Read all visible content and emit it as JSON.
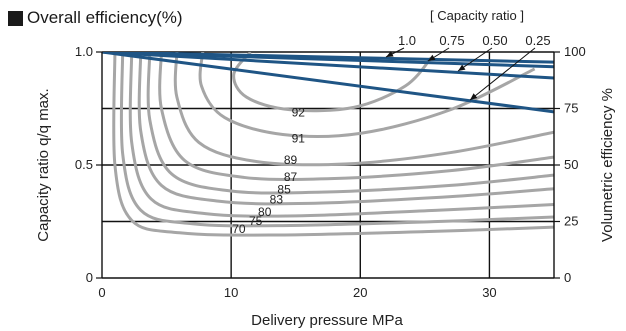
{
  "chart_data": {
    "type": "line",
    "title": "Overall efficiency(%)",
    "xlabel": "Delivery pressure MPa",
    "ylabel_left": "Capacity ratio  q/q max.",
    "ylabel_right": "Volumetric efficiency  %",
    "legend_title": "[ Capacity ratio ]",
    "xlim": [
      0,
      35
    ],
    "ylim": [
      0,
      1.0
    ],
    "grid": true,
    "x_ticks": [
      0,
      10,
      20,
      30
    ],
    "x_tick_labels": [
      "0",
      "10",
      "20",
      "30"
    ],
    "y_ticks_left": [
      0,
      0.5,
      1.0
    ],
    "y_tick_labels_left": [
      "0",
      "0.5",
      "1.0"
    ],
    "y_ticks_right": [
      0,
      0.25,
      0.5,
      0.75,
      1.0
    ],
    "y_tick_labels_right": [
      "0",
      "25",
      "50",
      "75",
      "100"
    ],
    "capacity_ratio_labels": [
      "1.0",
      "0.75",
      "0.50",
      "0.25"
    ],
    "volumetric_efficiency_series": [
      {
        "name": "1.0",
        "x": [
          0,
          35
        ],
        "y": [
          1.0,
          0.955
        ]
      },
      {
        "name": "0.75",
        "x": [
          0,
          35
        ],
        "y": [
          1.0,
          0.935
        ]
      },
      {
        "name": "0.50",
        "x": [
          0,
          35
        ],
        "y": [
          1.0,
          0.885
        ]
      },
      {
        "name": "0.25",
        "x": [
          0,
          35
        ],
        "y": [
          1.0,
          0.735
        ]
      }
    ],
    "efficiency_contours": [
      {
        "label": "92",
        "label_at": [
          15.2,
          0.715
        ],
        "points": [
          [
            11.5,
            1.0
          ],
          [
            10.2,
            0.9
          ],
          [
            11.2,
            0.8
          ],
          [
            14.5,
            0.745
          ],
          [
            19.5,
            0.755
          ],
          [
            23.5,
            0.85
          ],
          [
            25.5,
            0.975
          ]
        ]
      },
      {
        "label": "91",
        "label_at": [
          15.2,
          0.6
        ],
        "points": [
          [
            7.8,
            1.0
          ],
          [
            7.7,
            0.85
          ],
          [
            9.5,
            0.71
          ],
          [
            14,
            0.635
          ],
          [
            20,
            0.64
          ],
          [
            27,
            0.745
          ],
          [
            33.5,
            0.925
          ]
        ]
      },
      {
        "label": "89",
        "label_at": [
          14.6,
          0.505
        ],
        "points": [
          [
            5.8,
            1.0
          ],
          [
            5.8,
            0.8
          ],
          [
            7.5,
            0.6
          ],
          [
            12,
            0.515
          ],
          [
            19,
            0.505
          ],
          [
            27,
            0.555
          ],
          [
            35,
            0.645
          ]
        ]
      },
      {
        "label": "87",
        "label_at": [
          14.6,
          0.43
        ],
        "points": [
          [
            4.6,
            1.0
          ],
          [
            4.6,
            0.75
          ],
          [
            6.4,
            0.52
          ],
          [
            11,
            0.445
          ],
          [
            18,
            0.44
          ],
          [
            27,
            0.475
          ],
          [
            35,
            0.535
          ]
        ]
      },
      {
        "label": "85",
        "label_at": [
          14.1,
          0.375
        ],
        "points": [
          [
            3.7,
            1.0
          ],
          [
            3.7,
            0.7
          ],
          [
            5.4,
            0.46
          ],
          [
            10,
            0.385
          ],
          [
            17,
            0.38
          ],
          [
            27,
            0.41
          ],
          [
            35,
            0.455
          ]
        ]
      },
      {
        "label": "83",
        "label_at": [
          13.5,
          0.33
        ],
        "points": [
          [
            3.0,
            1.0
          ],
          [
            3.0,
            0.65
          ],
          [
            4.6,
            0.41
          ],
          [
            9,
            0.34
          ],
          [
            16,
            0.33
          ],
          [
            27,
            0.36
          ],
          [
            35,
            0.395
          ]
        ]
      },
      {
        "label": "80",
        "label_at": [
          12.6,
          0.275
        ],
        "points": [
          [
            2.3,
            1.0
          ],
          [
            2.3,
            0.6
          ],
          [
            3.8,
            0.35
          ],
          [
            8,
            0.285
          ],
          [
            15,
            0.275
          ],
          [
            26,
            0.3
          ],
          [
            35,
            0.325
          ]
        ]
      },
      {
        "label": "75",
        "label_at": [
          11.9,
          0.235
        ],
        "points": [
          [
            1.6,
            1.0
          ],
          [
            1.6,
            0.55
          ],
          [
            3.0,
            0.3
          ],
          [
            7,
            0.24
          ],
          [
            14,
            0.232
          ],
          [
            26,
            0.25
          ],
          [
            35,
            0.27
          ]
        ]
      },
      {
        "label": "70",
        "label_at": [
          10.6,
          0.2
        ],
        "points": [
          [
            1.0,
            1.0
          ],
          [
            1.0,
            0.5
          ],
          [
            2.3,
            0.255
          ],
          [
            6,
            0.2
          ],
          [
            13,
            0.19
          ],
          [
            25,
            0.205
          ],
          [
            35,
            0.225
          ]
        ]
      }
    ],
    "colors": {
      "efficiency": "#a6a6a6",
      "volumetric": "#1f5585",
      "grid": "#111111"
    }
  }
}
